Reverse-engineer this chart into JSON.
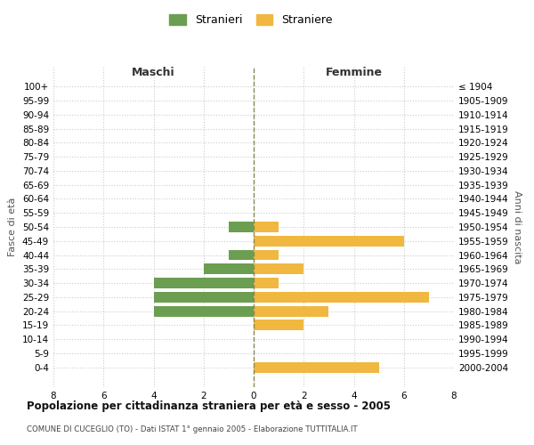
{
  "age_groups": [
    "100+",
    "95-99",
    "90-94",
    "85-89",
    "80-84",
    "75-79",
    "70-74",
    "65-69",
    "60-64",
    "55-59",
    "50-54",
    "45-49",
    "40-44",
    "35-39",
    "30-34",
    "25-29",
    "20-24",
    "15-19",
    "10-14",
    "5-9",
    "0-4"
  ],
  "birth_years": [
    "≤ 1904",
    "1905-1909",
    "1910-1914",
    "1915-1919",
    "1920-1924",
    "1925-1929",
    "1930-1934",
    "1935-1939",
    "1940-1944",
    "1945-1949",
    "1950-1954",
    "1955-1959",
    "1960-1964",
    "1965-1969",
    "1970-1974",
    "1975-1979",
    "1980-1984",
    "1985-1989",
    "1990-1994",
    "1995-1999",
    "2000-2004"
  ],
  "maschi_stranieri": [
    0,
    0,
    0,
    0,
    0,
    0,
    0,
    0,
    0,
    0,
    1,
    0,
    1,
    2,
    4,
    4,
    4,
    0,
    0,
    0,
    0
  ],
  "femmine_straniere": [
    0,
    0,
    0,
    0,
    0,
    0,
    0,
    0,
    0,
    0,
    1,
    6,
    1,
    2,
    1,
    7,
    3,
    2,
    0,
    0,
    5
  ],
  "male_color": "#6b9e50",
  "female_color": "#f0b840",
  "title": "Popolazione per cittadinanza straniera per età e sesso - 2005",
  "subtitle": "COMUNE DI CUCEGLIO (TO) - Dati ISTAT 1° gennaio 2005 - Elaborazione TUTTITALIA.IT",
  "left_label": "Maschi",
  "right_label": "Femmine",
  "y_left_label": "Fasce di età",
  "y_right_label": "Anni di nascita",
  "legend_male": "Stranieri",
  "legend_female": "Straniere",
  "xlim": 8,
  "background_color": "#ffffff",
  "grid_color": "#cccccc"
}
